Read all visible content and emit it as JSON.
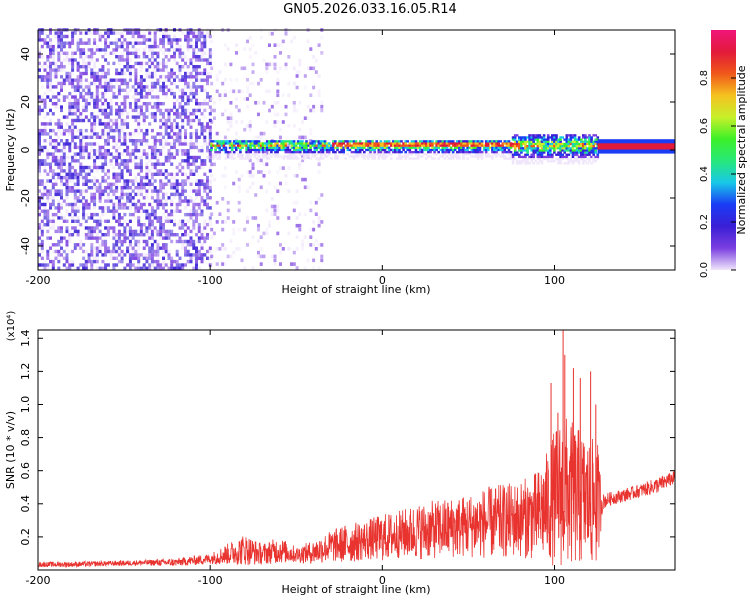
{
  "title": "GN05.2026.033.16.05.R14",
  "chart_data": [
    {
      "type": "heatmap",
      "xlabel": "Height of straight line (km)",
      "ylabel": "Frequency (Hz)",
      "xlim": [
        -200,
        170
      ],
      "ylim": [
        -50,
        50
      ],
      "x_ticks": [
        "-200",
        "-100",
        "0",
        "100"
      ],
      "x_tick_values": [
        -200,
        -100,
        0,
        100
      ],
      "y_ticks": [
        "-40",
        "-20",
        "0",
        "20",
        "40"
      ],
      "y_tick_values": [
        -40,
        -20,
        0,
        20,
        40
      ],
      "colorbar": {
        "label": "Normalized spectral amplitude",
        "ticks": [
          "0.0",
          "0.2",
          "0.4",
          "0.6",
          "0.8"
        ],
        "tick_values": [
          0.0,
          0.2,
          0.4,
          0.6,
          0.8
        ],
        "range": [
          0,
          1
        ],
        "colormap": [
          "#f0e6fb",
          "#7b3fe0",
          "#3a1fd6",
          "#1a3cf5",
          "#18c8e8",
          "#27e87a",
          "#3cf028",
          "#c6f02a",
          "#f5c21f",
          "#f0581a",
          "#e21a3a",
          "#f0147a"
        ]
      },
      "features": {
        "main_band_center_hz": 1.5,
        "noise_region_km": [
          -200,
          -100
        ],
        "sparse_region_km": [
          -100,
          -35
        ],
        "steady_line_start_km": 125
      }
    },
    {
      "type": "line",
      "xlabel": "Height of straight line (km)",
      "ylabel": "SNR (10 * v/v)",
      "y_multiplier": "(x10⁴)",
      "xlim": [
        -200,
        170
      ],
      "ylim": [
        0,
        1.45
      ],
      "x_ticks": [
        "-200",
        "-100",
        "0",
        "100"
      ],
      "x_tick_values": [
        -200,
        -100,
        0,
        100
      ],
      "y_ticks": [
        "0.2",
        "0.4",
        "0.6",
        "0.8",
        "1.0",
        "1.2",
        "1.4"
      ],
      "y_tick_values": [
        0.2,
        0.4,
        0.6,
        0.8,
        1.0,
        1.2,
        1.4
      ],
      "color": "#e8332f",
      "series": [
        {
          "x": [
            -200,
            -180,
            -160,
            -140,
            -120,
            -100,
            -90,
            -80,
            -70,
            -60,
            -50,
            -40,
            -30,
            -20,
            -10,
            0,
            10,
            20,
            30,
            40,
            50,
            60,
            70,
            80,
            90,
            95,
            100,
            105,
            110,
            115,
            120,
            125,
            128,
            132,
            140,
            150,
            160,
            170
          ],
          "y": [
            0.03,
            0.03,
            0.035,
            0.04,
            0.04,
            0.06,
            0.08,
            0.1,
            0.08,
            0.1,
            0.08,
            0.09,
            0.12,
            0.13,
            0.15,
            0.16,
            0.18,
            0.19,
            0.2,
            0.21,
            0.22,
            0.23,
            0.24,
            0.25,
            0.26,
            0.3,
            0.33,
            0.35,
            0.34,
            0.33,
            0.32,
            0.3,
            0.4,
            0.42,
            0.44,
            0.47,
            0.5,
            0.55
          ],
          "upper": [
            0.05,
            0.05,
            0.055,
            0.06,
            0.07,
            0.1,
            0.16,
            0.22,
            0.16,
            0.2,
            0.14,
            0.18,
            0.24,
            0.28,
            0.3,
            0.34,
            0.36,
            0.4,
            0.42,
            0.44,
            0.46,
            0.5,
            0.52,
            0.54,
            0.6,
            0.7,
            0.85,
            0.95,
            0.9,
            0.85,
            0.8,
            0.78,
            0.46,
            0.47,
            0.49,
            0.52,
            0.56,
            0.6
          ],
          "peaks": [
            [
              98,
              1.13
            ],
            [
              102,
              0.95
            ],
            [
              105,
              1.45
            ],
            [
              106,
              1.3
            ],
            [
              111,
              1.22
            ],
            [
              115,
              1.16
            ],
            [
              121,
              1.2
            ],
            [
              124,
              1.0
            ]
          ]
        }
      ]
    }
  ]
}
